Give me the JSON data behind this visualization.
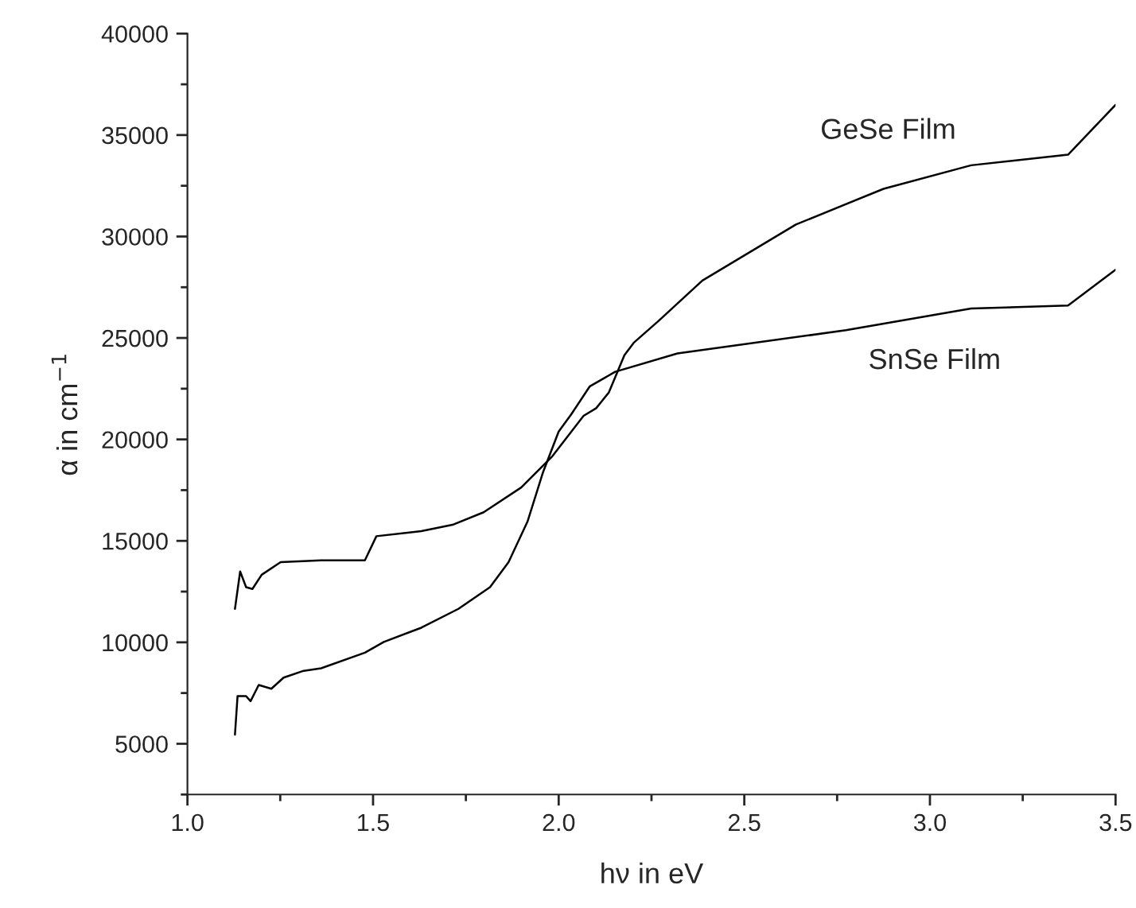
{
  "chart_data": {
    "type": "line",
    "xlabel": "hν in eV",
    "ylabel": "α in cm$^{−1}$",
    "xlim": [
      1.0,
      3.5
    ],
    "xticks": [
      {
        "value": 1.0,
        "label": "1.0"
      },
      {
        "value": 1.5,
        "label": "1.5"
      },
      {
        "value": 2.0,
        "label": "2.0"
      },
      {
        "value": 2.5,
        "label": "2.5"
      },
      {
        "value": 3.0,
        "label": "3.0"
      },
      {
        "value": 3.5,
        "label": "3.5"
      }
    ],
    "ylim": [
      2500,
      40000
    ],
    "yticks": [
      5000,
      10000,
      15000,
      20000,
      25000,
      30000,
      35000,
      40000
    ],
    "grid": false,
    "marker": "none",
    "line_style": "solid",
    "series": [
      {
        "name": "GeSe Film",
        "color": "#000000",
        "x": [
          1.128,
          1.142,
          1.158,
          1.175,
          1.2,
          1.251,
          1.36,
          1.478,
          1.509,
          1.63,
          1.714,
          1.798,
          1.899,
          1.983,
          2.067,
          2.101,
          2.135,
          2.177,
          2.202,
          2.269,
          2.387,
          2.639,
          2.875,
          3.111,
          3.372,
          3.5
        ],
        "values": [
          11650,
          13490,
          12720,
          12630,
          13330,
          13950,
          14040,
          14040,
          15230,
          15480,
          15790,
          16410,
          17630,
          19170,
          21160,
          21540,
          22310,
          24150,
          24760,
          25840,
          27830,
          30590,
          32350,
          33510,
          34030,
          36490
        ]
      },
      {
        "name": "SnSe Film",
        "color": "#000000",
        "x": [
          1.128,
          1.135,
          1.158,
          1.17,
          1.192,
          1.226,
          1.259,
          1.31,
          1.36,
          1.478,
          1.529,
          1.63,
          1.73,
          1.815,
          1.865,
          1.916,
          1.958,
          2.0,
          2.034,
          2.084,
          2.152,
          2.32,
          2.774,
          3.111,
          3.372,
          3.5
        ],
        "values": [
          5450,
          7350,
          7350,
          7100,
          7900,
          7710,
          8260,
          8580,
          8720,
          9490,
          10020,
          10720,
          11650,
          12720,
          13950,
          15950,
          18390,
          20390,
          21240,
          22620,
          23330,
          24240,
          25380,
          26450,
          26600,
          28360
        ]
      }
    ]
  }
}
